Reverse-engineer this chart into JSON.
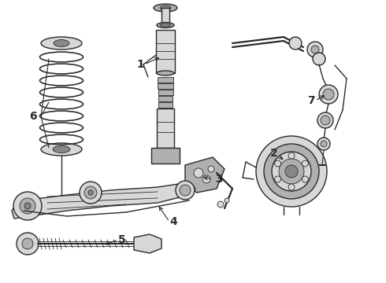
{
  "bg_color": "#ffffff",
  "fig_width": 4.9,
  "fig_height": 3.6,
  "dpi": 100,
  "lc": "#2a2a2a",
  "fc_light": "#d8d8d8",
  "fc_mid": "#b0b0b0",
  "fc_dark": "#888888",
  "lw_thin": 0.6,
  "lw_med": 1.0,
  "lw_thick": 1.6,
  "label_fs": 10,
  "label_bold": true
}
